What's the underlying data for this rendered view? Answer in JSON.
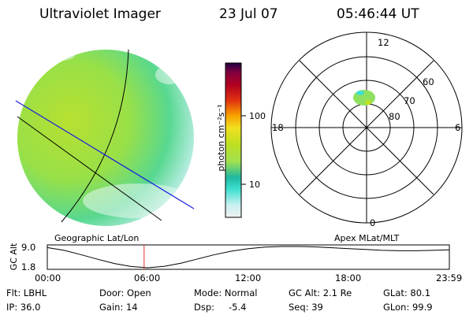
{
  "header": {
    "instrument": "Ultraviolet Imager",
    "date": "23 Jul 07",
    "time": "05:46:44 UT"
  },
  "colorbar": {
    "unit_label": "photon cm⁻²s⁻¹",
    "ticks": [
      "100",
      "10"
    ],
    "scale": "log",
    "colors": [
      "#f0f0f0",
      "#c8f0f0",
      "#40e0d0",
      "#20b8a0",
      "#a0e050",
      "#c0e020",
      "#f0e020",
      "#f8a000",
      "#e03010",
      "#b00020",
      "#800040",
      "#200040"
    ]
  },
  "panels": {
    "left_label": "Geographic Lat/Lon",
    "right_label": "Apex MLat/MLT"
  },
  "polar_plot": {
    "hour_labels": {
      "top": "12",
      "right": "6",
      "bottom": "0",
      "left": "18"
    },
    "lat_labels": [
      "60",
      "70",
      "80"
    ]
  },
  "orbit": {
    "axis_label": "GC Alt",
    "ytick_top": "9.0",
    "ytick_bottom": "1.8",
    "xticks": [
      "00:00",
      "06:00",
      "12:00",
      "18:00",
      "23:59"
    ],
    "marker_time": "05:46:44",
    "line_color": "#000000",
    "marker_color": "#e03030"
  },
  "info": {
    "flt": "Flt: LBHL",
    "ip": "IP: 36.0",
    "door": "Door: Open",
    "gain": "Gain: 14",
    "mode": "Mode: Normal",
    "dsp_label": "Dsp:",
    "dsp_value": "-5.4",
    "gc_alt": "GC Alt: 2.1 Re",
    "seq": "Seq: 39",
    "glat": "GLat: 80.1",
    "glon": "GLon: 99.9"
  }
}
